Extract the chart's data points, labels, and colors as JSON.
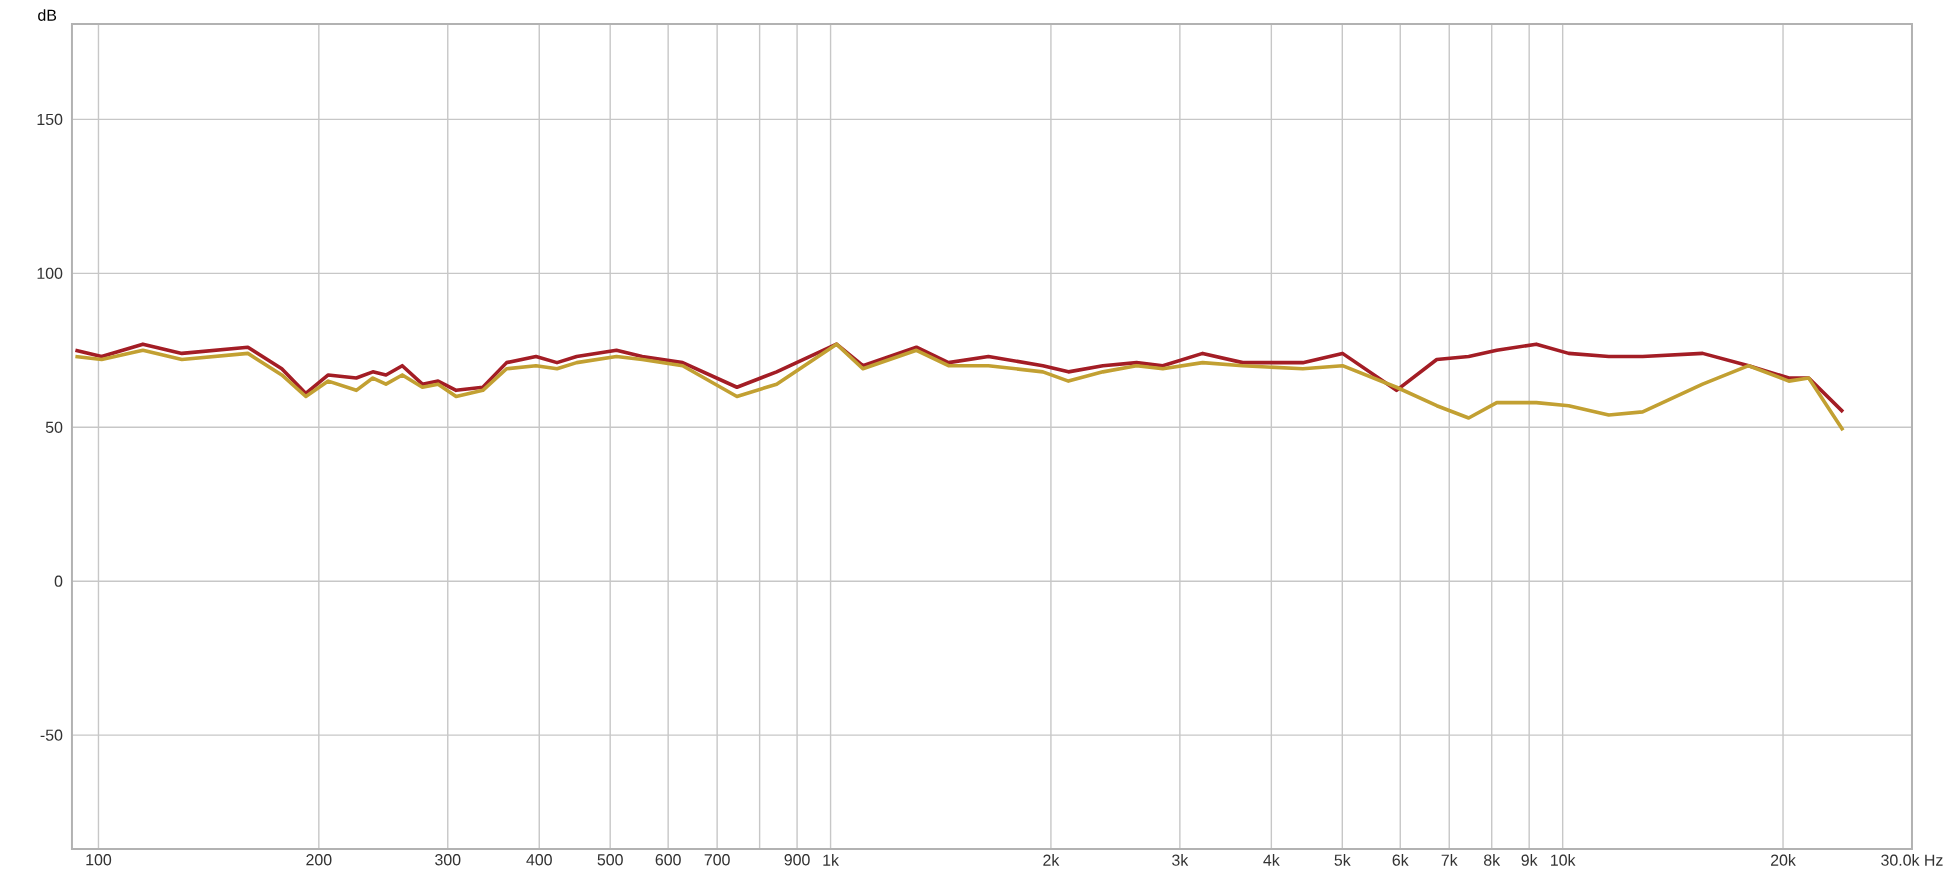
{
  "chart_data": {
    "type": "line",
    "ylabel": "dB",
    "log": "x",
    "x": [
      93,
      101,
      115,
      130,
      160,
      178,
      192,
      206,
      225,
      237,
      247,
      260,
      277,
      291,
      308,
      335,
      361,
      396,
      423,
      450,
      510,
      553,
      628,
      745,
      844,
      1019,
      1107,
      1310,
      1449,
      1643,
      1950,
      2113,
      2355,
      2618,
      2843,
      3223,
      3656,
      4416,
      5003,
      5930,
      6730,
      7442,
      8128,
      9204,
      10190,
      11560,
      12860,
      15530,
      17950,
      20370,
      21680,
      24150
    ],
    "series": [
      {
        "color": "#a31d25",
        "values": [
          75,
          73,
          77,
          74,
          76,
          69,
          61,
          67,
          66,
          68,
          67,
          70,
          64,
          65,
          62,
          63,
          71,
          73,
          71,
          73,
          75,
          73,
          71,
          63,
          68,
          77,
          70,
          76,
          71,
          73,
          70,
          68,
          70,
          71,
          70,
          74,
          71,
          71,
          74,
          62,
          72,
          73,
          75,
          77,
          74,
          73,
          73,
          74,
          70,
          66,
          66,
          55
        ]
      },
      {
        "color": "#c2a032",
        "values": [
          73,
          72,
          75,
          72,
          74,
          67,
          60,
          65,
          62,
          66,
          64,
          67,
          63,
          64,
          60,
          62,
          69,
          70,
          69,
          71,
          73,
          72,
          70,
          60,
          64,
          77,
          69,
          75,
          70,
          70,
          68,
          65,
          68,
          70,
          69,
          71,
          70,
          69,
          70,
          63,
          57,
          53,
          58,
          58,
          57,
          54,
          55,
          64,
          70,
          65,
          66,
          49
        ]
      }
    ],
    "xlim": [
      92,
      30000
    ],
    "ylim": [
      -87,
      181
    ],
    "xticks": [
      100,
      200,
      300,
      400,
      500,
      600,
      700,
      {
        "value": 800,
        "label": null
      },
      {
        "value": 900,
        "label": "900"
      },
      {
        "value": 1000,
        "label": "1k"
      },
      {
        "value": 2000,
        "label": "2k"
      },
      {
        "value": 3000,
        "label": "3k"
      },
      {
        "value": 4000,
        "label": "4k"
      },
      {
        "value": 5000,
        "label": "5k"
      },
      {
        "value": 6000,
        "label": "6k"
      },
      {
        "value": 7000,
        "label": "7k"
      },
      {
        "value": 8000,
        "label": "8k"
      },
      {
        "value": 9000,
        "label": "9k"
      },
      {
        "value": 10000,
        "label": "10k"
      },
      {
        "value": 20000,
        "label": "20k"
      },
      {
        "value": 30000,
        "label": "30.0k Hz"
      }
    ],
    "yticks": [
      -50,
      0,
      50,
      100,
      150
    ],
    "grid": true,
    "marker": "none",
    "line_style": "solid"
  }
}
